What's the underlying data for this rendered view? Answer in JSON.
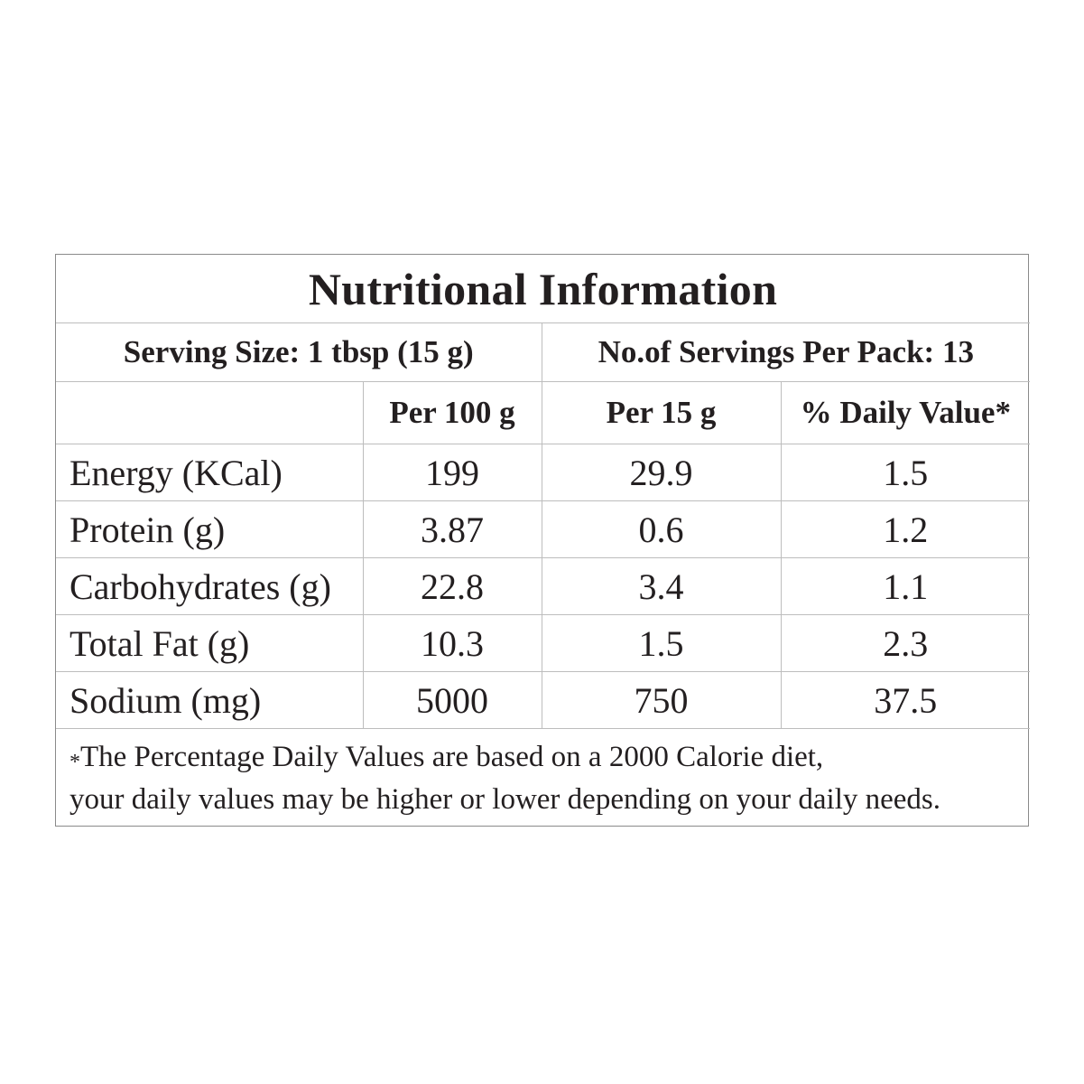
{
  "title": "Nutritional Information",
  "serving_size": "Serving Size: 1 tbsp (15 g)",
  "servings_per_pack": "No.of Servings Per Pack: 13",
  "columns": [
    "",
    "Per 100 g",
    "Per 15 g",
    "% Daily Value*"
  ],
  "rows": [
    {
      "label": "Energy (KCal)",
      "per100": "199",
      "per15": "29.9",
      "dv": "1.5"
    },
    {
      "label": "Protein (g)",
      "per100": "3.87",
      "per15": "0.6",
      "dv": "1.2"
    },
    {
      "label": "Carbohydrates (g)",
      "per100": "22.8",
      "per15": "3.4",
      "dv": "1.1"
    },
    {
      "label": "Total Fat (g)",
      "per100": "10.3",
      "per15": "1.5",
      "dv": "2.3"
    },
    {
      "label": "Sodium (mg)",
      "per100": "5000",
      "per15": "750",
      "dv": "37.5"
    }
  ],
  "footnote": {
    "star": "*",
    "line1": "The Percentage Daily Values are based on a 2000 Calorie diet,",
    "line2": "your daily values may be higher or lower depending on your daily needs."
  },
  "colors": {
    "text": "#231f20",
    "grid": "#bdbdbd",
    "frame": "#8a8a8a",
    "background": "#ffffff"
  }
}
